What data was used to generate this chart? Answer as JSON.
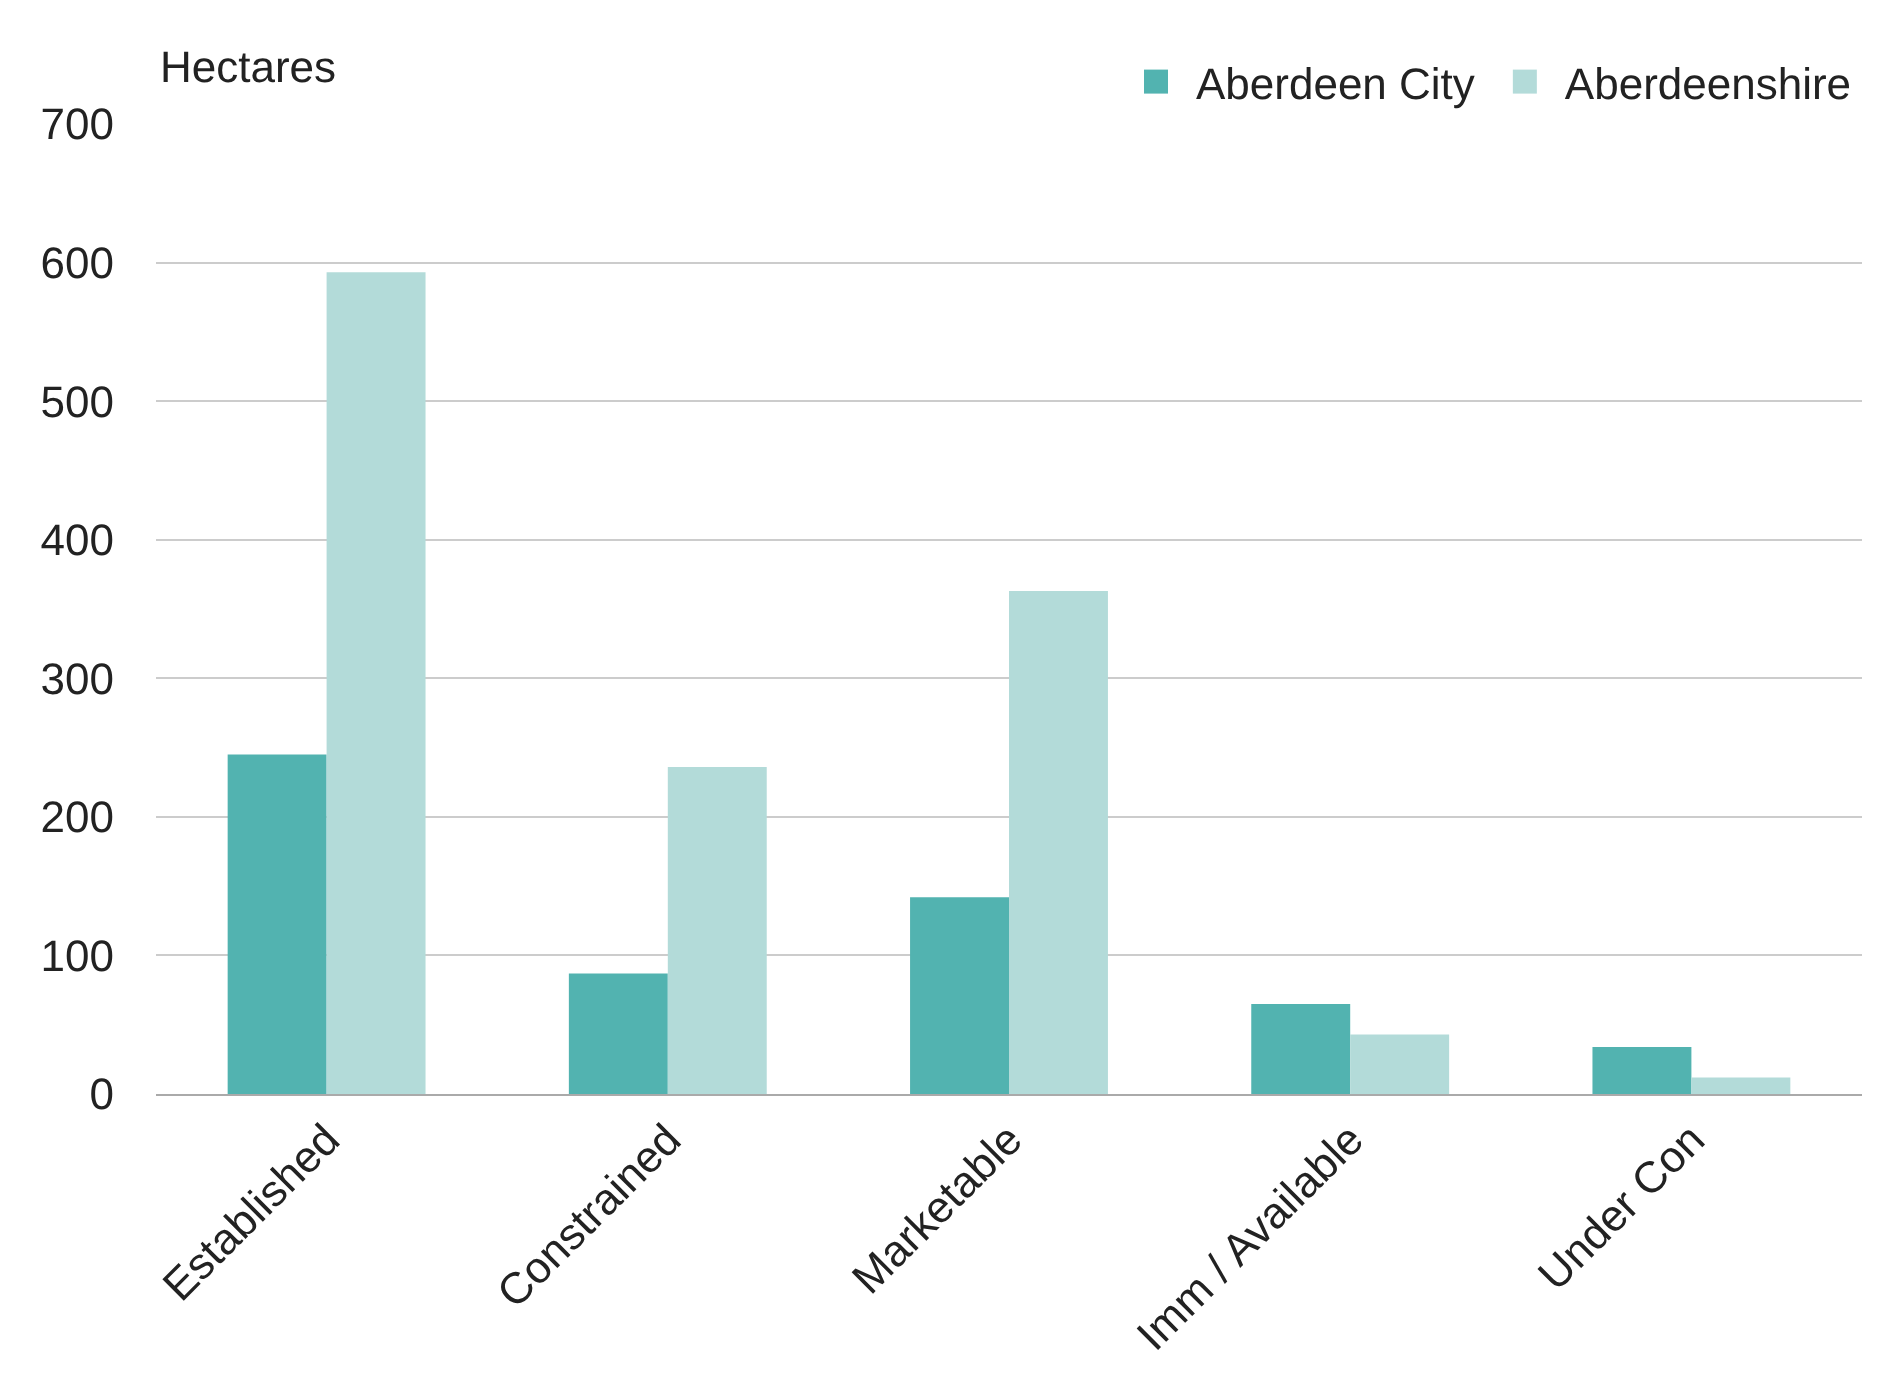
{
  "chart_data": {
    "type": "bar",
    "ylabel": "Hectares",
    "categories": [
      "Established",
      "Constrained",
      "Marketable",
      "Imm / Available",
      "Under Con"
    ],
    "series": [
      {
        "name": "Aberdeen City",
        "color": "#52b3b0",
        "values": [
          245,
          87,
          142,
          65,
          34
        ]
      },
      {
        "name": "Aberdeenshire",
        "color": "#b3dbd9",
        "values": [
          593,
          236,
          363,
          43,
          12
        ]
      }
    ],
    "ylim": [
      0,
      700
    ],
    "yticks": [
      0,
      100,
      200,
      300,
      400,
      500,
      600,
      700
    ],
    "grid": "y",
    "legend": "top right"
  }
}
